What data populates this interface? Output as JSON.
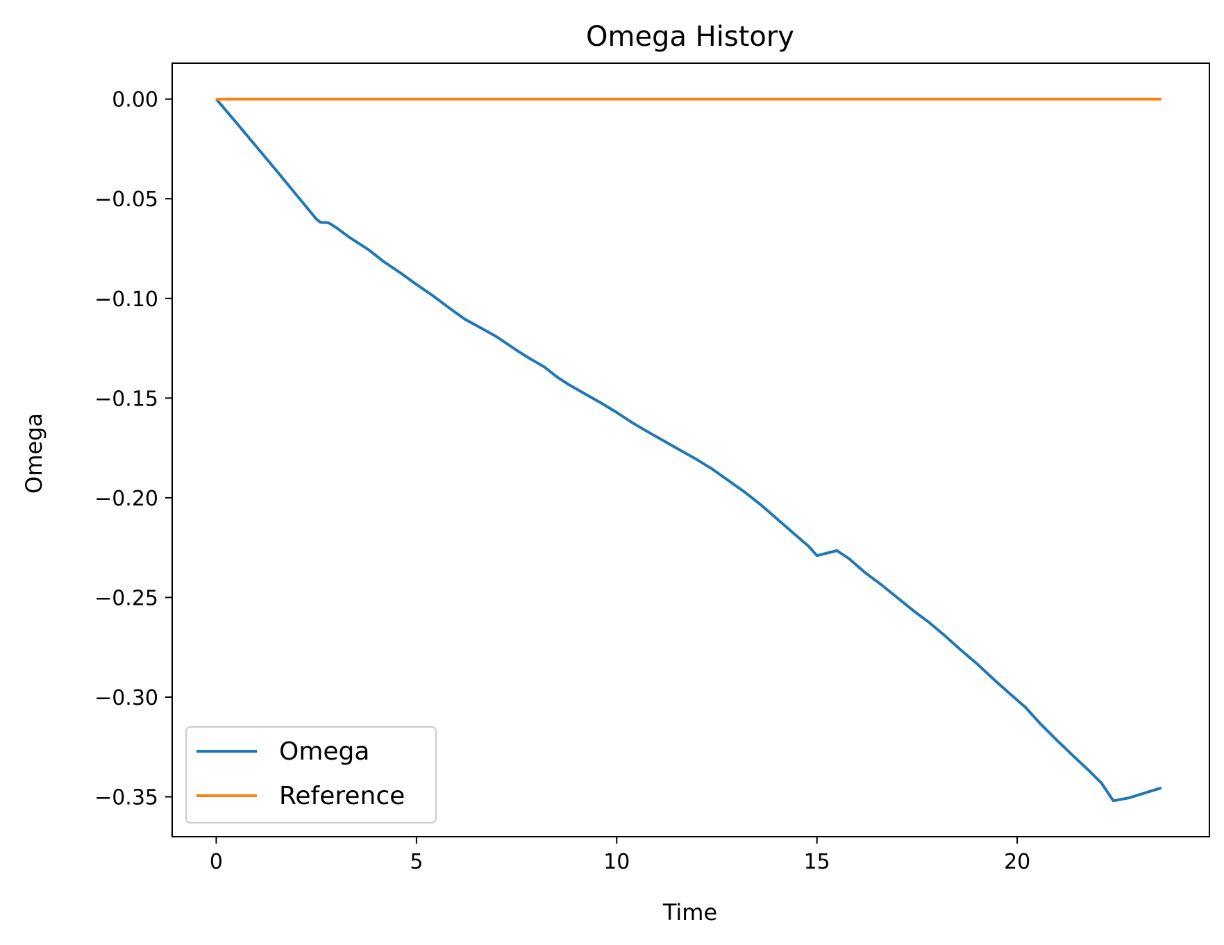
{
  "chart_data": {
    "type": "line",
    "title": "Omega History",
    "xlabel": "Time",
    "ylabel": "Omega",
    "xlim": [
      -1.1,
      24.8
    ],
    "ylim": [
      -0.37,
      0.018
    ],
    "xticks": [
      0,
      5,
      10,
      15,
      20
    ],
    "xtick_labels": [
      "0",
      "5",
      "10",
      "15",
      "20"
    ],
    "yticks": [
      0.0,
      -0.05,
      -0.1,
      -0.15,
      -0.2,
      -0.25,
      -0.3,
      -0.35
    ],
    "ytick_labels": [
      "0.00",
      "−0.05",
      "−0.10",
      "−0.15",
      "−0.20",
      "−0.25",
      "−0.30",
      "−0.35"
    ],
    "grid": false,
    "legend_position": "lower-left",
    "series": [
      {
        "name": "Omega",
        "color": "#1f77b4",
        "x": [
          0,
          0.5,
          1,
          1.5,
          2,
          2.5,
          2.6,
          2.8,
          3.0,
          3.3,
          3.8,
          4.2,
          4.6,
          5.0,
          5.4,
          5.8,
          6.2,
          6.7,
          7.0,
          7.5,
          7.8,
          8.2,
          8.5,
          8.8,
          9.2,
          9.6,
          10.0,
          10.4,
          10.8,
          11.2,
          11.6,
          12.0,
          12.4,
          12.8,
          13.2,
          13.6,
          14.0,
          14.4,
          14.8,
          15.0,
          15.2,
          15.5,
          15.8,
          16.2,
          16.6,
          17.0,
          17.4,
          17.8,
          18.2,
          18.6,
          19.0,
          19.4,
          19.8,
          20.2,
          20.6,
          21.0,
          21.4,
          21.8,
          22.1,
          22.4,
          22.8,
          23.2,
          23.6
        ],
        "y": [
          0,
          -0.0118,
          -0.0238,
          -0.0358,
          -0.048,
          -0.0602,
          -0.0618,
          -0.062,
          -0.0645,
          -0.069,
          -0.0755,
          -0.0818,
          -0.0872,
          -0.093,
          -0.0985,
          -0.1045,
          -0.1103,
          -0.1158,
          -0.1192,
          -0.126,
          -0.1298,
          -0.1345,
          -0.1393,
          -0.1432,
          -0.1478,
          -0.1523,
          -0.1572,
          -0.1625,
          -0.1672,
          -0.1717,
          -0.1763,
          -0.1808,
          -0.1858,
          -0.1915,
          -0.1972,
          -0.2035,
          -0.2105,
          -0.2175,
          -0.2245,
          -0.229,
          -0.228,
          -0.2265,
          -0.2305,
          -0.2375,
          -0.2435,
          -0.25,
          -0.2565,
          -0.2625,
          -0.2693,
          -0.2765,
          -0.2833,
          -0.2908,
          -0.298,
          -0.305,
          -0.3138,
          -0.3218,
          -0.3295,
          -0.337,
          -0.343,
          -0.352,
          -0.3505,
          -0.348,
          -0.3455
        ]
      },
      {
        "name": "Reference",
        "color": "#ff7f0e",
        "x": [
          0,
          23.6
        ],
        "y": [
          0,
          0
        ]
      }
    ]
  }
}
